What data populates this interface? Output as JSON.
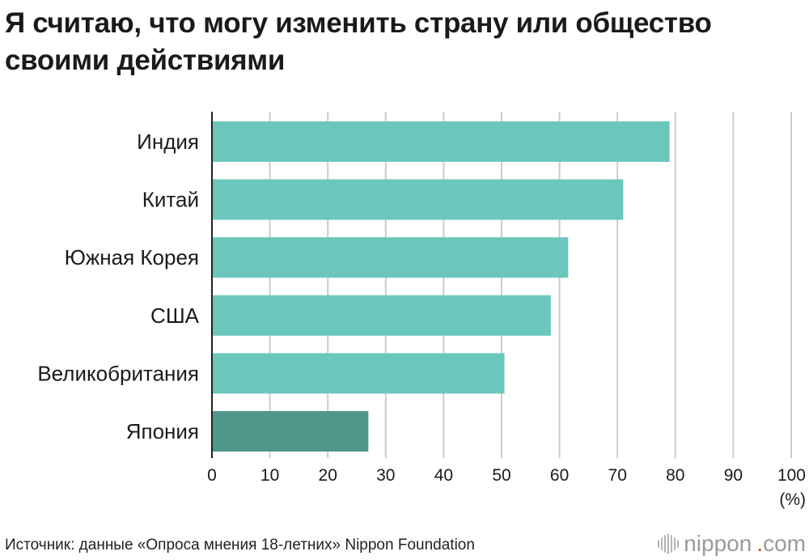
{
  "title": "Я считаю, что могу изменить страну или общество своими действиями",
  "chart_data": {
    "type": "bar",
    "orientation": "horizontal",
    "categories": [
      "Индия",
      "Китай",
      "Южная Корея",
      "США",
      "Великобритания",
      "Япония"
    ],
    "values": [
      79,
      71,
      61.5,
      58.5,
      50.5,
      27
    ],
    "xlim": [
      0,
      100
    ],
    "xticks": [
      "0",
      "10",
      "20",
      "30",
      "40",
      "50",
      "60",
      "70",
      "80",
      "90",
      "100"
    ],
    "unit_label": "(%)",
    "grid": true,
    "colors": {
      "default": "#6bc7bb",
      "highlight": "#4f978a",
      "grid": "#cccccc",
      "axis": "#222222"
    },
    "highlight_category": "Япония"
  },
  "source": "Источник: данные «Опроса мнения 18-летних» Nippon Foundation",
  "brand": {
    "name": "nippon",
    "dot": ".",
    "tld": "com"
  }
}
